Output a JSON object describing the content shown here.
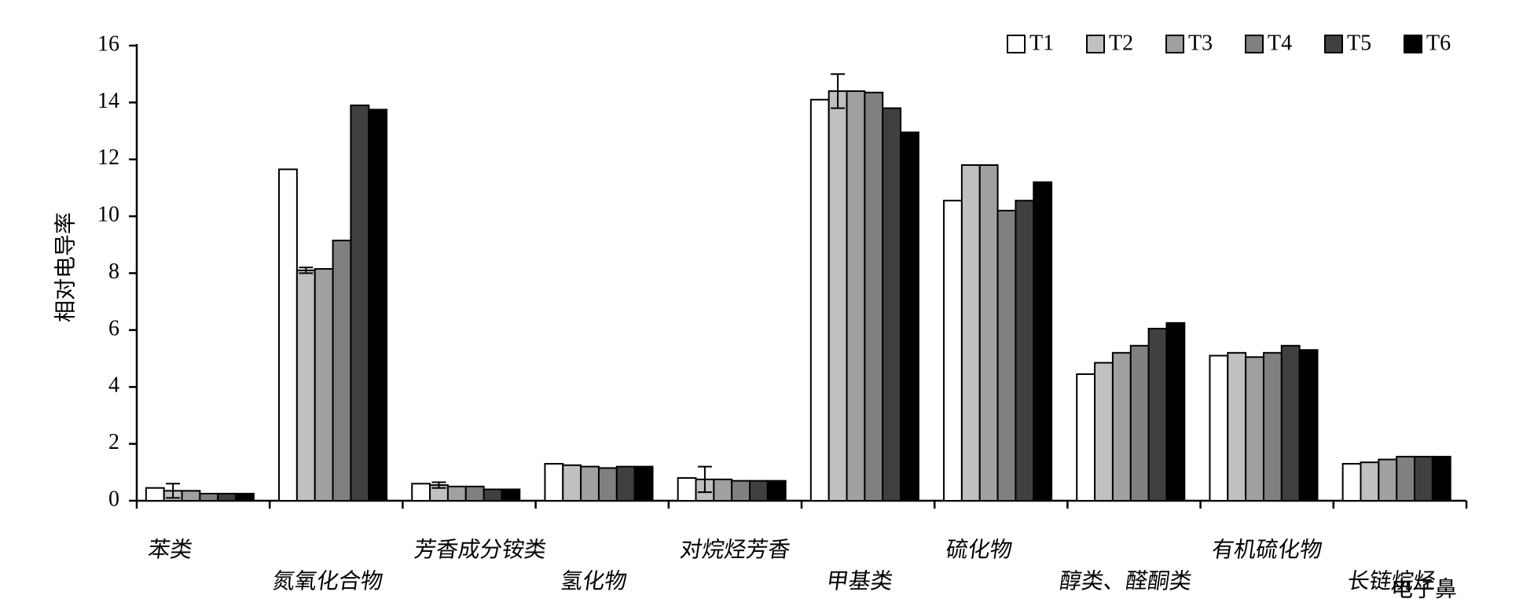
{
  "chart_data": {
    "type": "bar",
    "y_label": "相对电导率",
    "x_label": "电子鼻",
    "categories": [
      "苯类",
      "氮氧化合物",
      "芳香成分铵类",
      "氢化物",
      "对烷烃芳香",
      "甲基类",
      "硫化物",
      "醇类、醛酮类",
      "有机硫化物",
      "长链烷烃"
    ],
    "series": [
      {
        "name": "T1",
        "color": "#ffffff",
        "values": [
          0.45,
          11.65,
          0.6,
          1.3,
          0.8,
          14.1,
          10.55,
          4.45,
          5.1,
          1.3
        ]
      },
      {
        "name": "T2",
        "color": "#c0c0c0",
        "values": [
          0.35,
          8.1,
          0.55,
          1.25,
          0.75,
          14.4,
          11.8,
          4.85,
          5.2,
          1.35
        ],
        "errors": [
          0.25,
          0.1,
          0.1,
          null,
          0.45,
          0.6,
          null,
          null,
          null,
          null
        ]
      },
      {
        "name": "T3",
        "color": "#a0a0a0",
        "values": [
          0.35,
          8.15,
          0.5,
          1.2,
          0.75,
          14.4,
          11.8,
          5.2,
          5.05,
          1.45
        ]
      },
      {
        "name": "T4",
        "color": "#808080",
        "values": [
          0.25,
          9.15,
          0.5,
          1.15,
          0.7,
          14.35,
          10.2,
          5.45,
          5.2,
          1.55
        ]
      },
      {
        "name": "T5",
        "color": "#404040",
        "values": [
          0.25,
          13.9,
          0.4,
          1.2,
          0.7,
          13.8,
          10.55,
          6.05,
          5.45,
          1.55
        ]
      },
      {
        "name": "T6",
        "color": "#000000",
        "values": [
          0.25,
          13.75,
          0.4,
          1.2,
          0.7,
          12.95,
          11.2,
          6.25,
          5.3,
          1.55
        ]
      }
    ],
    "ylim": [
      0,
      16
    ],
    "yticks": [
      0,
      2,
      4,
      6,
      8,
      10,
      12,
      14,
      16
    ],
    "legend": "top-right",
    "grid": false
  }
}
